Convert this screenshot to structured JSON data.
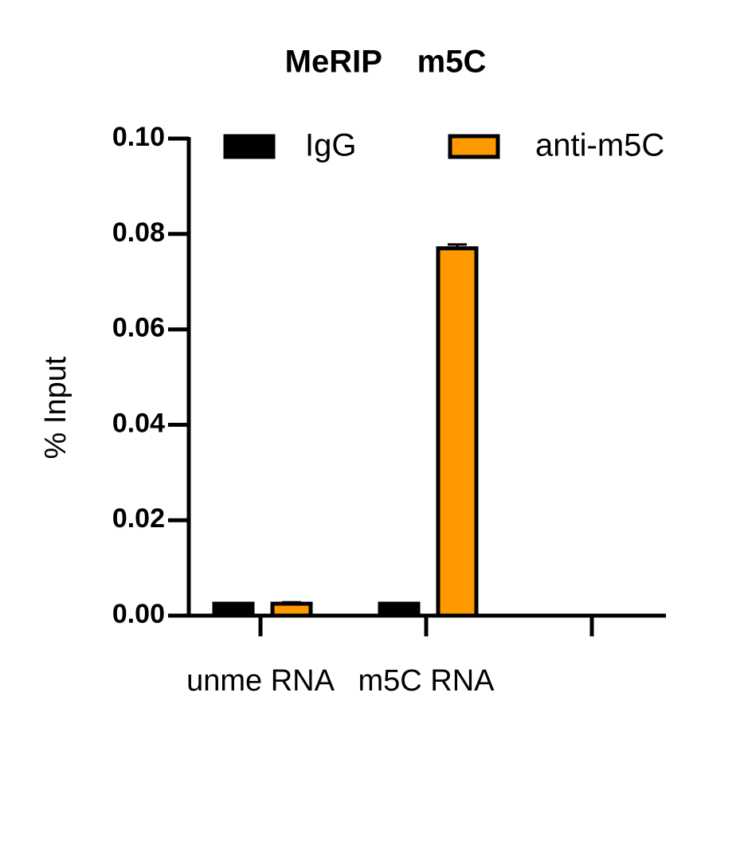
{
  "chart_data": {
    "type": "bar",
    "title": "MeRIP    m5C",
    "y_label": "% Input",
    "categories": [
      "unme RNA",
      "m5C RNA",
      null
    ],
    "series": [
      {
        "name": "IgG",
        "color": "#000000",
        "values": [
          0.0025,
          0.0025,
          null
        ]
      },
      {
        "name": "anti-m5C",
        "color": "#ff9900",
        "values": [
          0.0025,
          0.077,
          null
        ],
        "errors": [
          0.0003,
          0.0008,
          null
        ]
      }
    ],
    "ylim": [
      0,
      0.1
    ],
    "yticks": [
      {
        "value": 0,
        "label": "0.00"
      },
      {
        "value": 0.02,
        "label": "0.02"
      },
      {
        "value": 0.04,
        "label": "0.04"
      },
      {
        "value": 0.06,
        "label": "0.06"
      },
      {
        "value": 0.08,
        "label": "0.08"
      },
      {
        "value": 0.1,
        "label": "0.10"
      }
    ],
    "legend": "top",
    "grid": false
  }
}
